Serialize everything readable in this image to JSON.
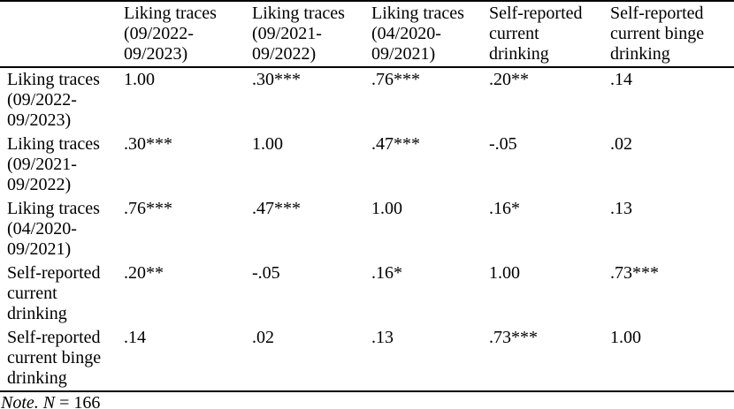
{
  "table": {
    "corner_label": "",
    "columns": [
      "Liking traces (09/2022-09/2023)",
      "Liking traces (09/2021-09/2022)",
      "Liking traces (04/2020-09/2021)",
      "Self-reported current drinking",
      "Self-reported current binge drinking"
    ],
    "rows": [
      {
        "label": "Liking traces (09/2022-09/2023)",
        "values": [
          "1.00",
          ".30***",
          ".76***",
          ".20**",
          ".14"
        ]
      },
      {
        "label": "Liking traces (09/2021-09/2022)",
        "values": [
          ".30***",
          "1.00",
          ".47***",
          "-.05",
          ".02"
        ]
      },
      {
        "label": "Liking traces (04/2020-09/2021)",
        "values": [
          ".76***",
          ".47***",
          "1.00",
          ".16*",
          ".13"
        ]
      },
      {
        "label": "Self-reported current drinking",
        "values": [
          ".20**",
          "-.05",
          ".16*",
          "1.00",
          ".73***"
        ]
      },
      {
        "label": "Self-reported current binge drinking",
        "values": [
          ".14",
          ".02",
          ".13",
          ".73***",
          "1.00"
        ]
      }
    ]
  },
  "note": {
    "label": "Note.",
    "n": "N",
    "rest": "= 166"
  }
}
